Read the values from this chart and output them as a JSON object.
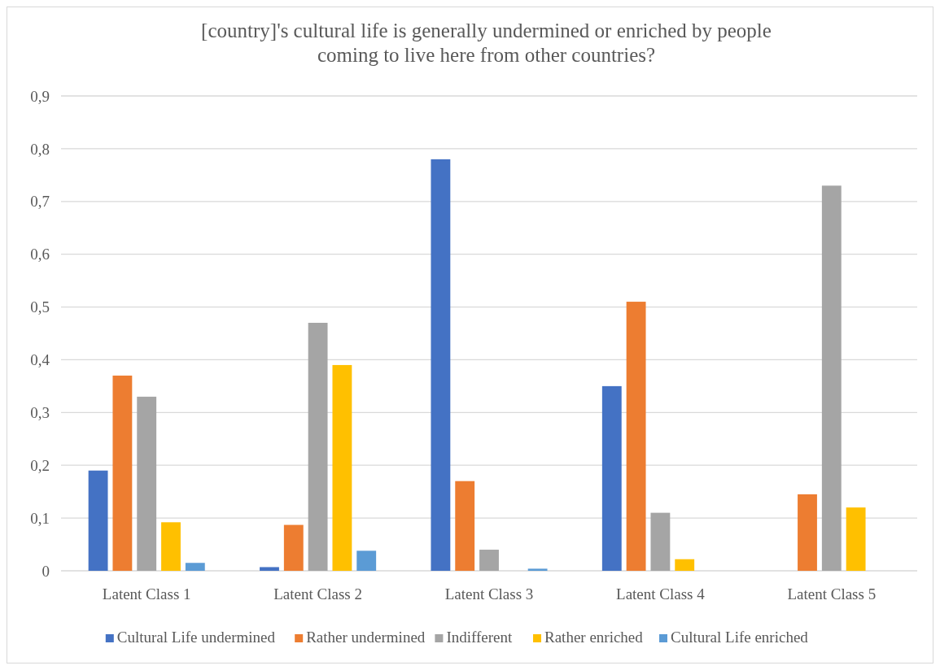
{
  "chart_data": {
    "type": "bar",
    "title": "[country]'s cultural life is generally undermined or enriched by people coming to live here from other countries?",
    "categories": [
      "Latent Class 1",
      "Latent Class 2",
      "Latent Class 3",
      "Latent Class 4",
      "Latent Class 5"
    ],
    "series": [
      {
        "name": "Cultural Life undermined",
        "color": "#4472c4",
        "values": [
          0.19,
          0.007,
          0.78,
          0.35,
          0
        ]
      },
      {
        "name": "Rather undermined",
        "color": "#ed7d31",
        "values": [
          0.37,
          0.087,
          0.17,
          0.51,
          0.145
        ]
      },
      {
        "name": "Indifferent",
        "color": "#a5a5a5",
        "values": [
          0.33,
          0.47,
          0.04,
          0.11,
          0.73
        ]
      },
      {
        "name": "Rather enriched",
        "color": "#ffc000",
        "values": [
          0.092,
          0.39,
          0,
          0.022,
          0.12
        ]
      },
      {
        "name": "Cultural Life enriched",
        "color": "#5b9bd5",
        "values": [
          0.015,
          0.038,
          0.004,
          0,
          0
        ]
      }
    ],
    "ylim": [
      0,
      0.9
    ],
    "yticks": [
      {
        "value": 0,
        "label": "0"
      },
      {
        "value": 0.1,
        "label": "0,1"
      },
      {
        "value": 0.2,
        "label": "0,2"
      },
      {
        "value": 0.3,
        "label": "0,3"
      },
      {
        "value": 0.4,
        "label": "0,4"
      },
      {
        "value": 0.5,
        "label": "0,5"
      },
      {
        "value": 0.6,
        "label": "0,6"
      },
      {
        "value": 0.7,
        "label": "0,7"
      },
      {
        "value": 0.8,
        "label": "0,8"
      },
      {
        "value": 0.9,
        "label": "0,9"
      }
    ],
    "grid": "y",
    "legend": "bottom"
  }
}
